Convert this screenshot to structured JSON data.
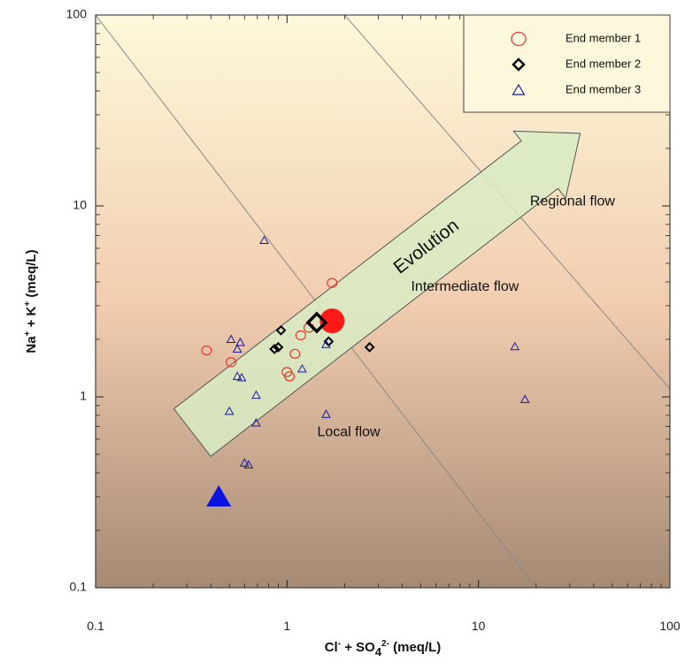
{
  "chart_data": {
    "type": "scatter",
    "x_scale": "log",
    "y_scale": "log",
    "xlim": [
      0.1,
      100
    ],
    "ylim": [
      0.1,
      100
    ],
    "x_ticks": [
      "0.1",
      "1",
      "10",
      "100"
    ],
    "y_ticks": [
      "0.1",
      "1",
      "10",
      "100"
    ],
    "xlabel": {
      "parts": [
        "Cl",
        "-",
        " + SO",
        "4",
        "2-",
        " (meq/L)"
      ]
    },
    "ylabel": {
      "parts": [
        "Na",
        "+",
        " + K",
        "+",
        " (meq/L)"
      ]
    },
    "grid": false,
    "legend_position": "top-right",
    "colors": {
      "end_member_1": "#e8392a",
      "end_member_2": "#000000",
      "end_member_3": "#1a1aa0",
      "end_member_1_large": "#ff1a1a",
      "end_member_3_large": "#0a14e0",
      "arrow_fill": "#d8ecc4",
      "background_top": "#fdf9da",
      "background_bottom": "#a68a74"
    },
    "series": [
      {
        "name": "End member 1",
        "marker": "circle-open",
        "points": [
          [
            0.38,
            1.75
          ],
          [
            0.51,
            1.52
          ],
          [
            1.0,
            1.35
          ],
          [
            1.03,
            1.28
          ],
          [
            1.1,
            1.68
          ],
          [
            1.18,
            2.1
          ],
          [
            1.3,
            2.3
          ],
          [
            1.65,
            2.65
          ],
          [
            1.72,
            3.95
          ]
        ]
      },
      {
        "name": "End member 2",
        "marker": "diamond-open",
        "points": [
          [
            0.86,
            1.78
          ],
          [
            0.9,
            1.82
          ],
          [
            0.93,
            2.23
          ],
          [
            1.65,
            1.95
          ],
          [
            2.7,
            1.82
          ]
        ]
      },
      {
        "name": "End member 3",
        "marker": "triangle-open",
        "points": [
          [
            0.51,
            2.0
          ],
          [
            0.55,
            1.78
          ],
          [
            0.57,
            1.93
          ],
          [
            0.55,
            1.28
          ],
          [
            0.58,
            1.26
          ],
          [
            0.5,
            0.84
          ],
          [
            0.69,
            1.02
          ],
          [
            0.69,
            0.73
          ],
          [
            0.6,
            0.45
          ],
          [
            0.63,
            0.44
          ],
          [
            0.76,
            6.6
          ],
          [
            1.2,
            1.4
          ],
          [
            1.6,
            1.88
          ],
          [
            1.6,
            0.81
          ],
          [
            15.5,
            1.83
          ],
          [
            17.5,
            0.97
          ]
        ]
      }
    ],
    "highlighted_points": [
      {
        "series": "End member 1",
        "marker": "circle-filled",
        "point": [
          1.72,
          2.5
        ]
      },
      {
        "series": "End member 2",
        "marker": "diamond-open-bold",
        "point": [
          1.43,
          2.45
        ]
      },
      {
        "series": "End member 3",
        "marker": "triangle-filled",
        "point": [
          0.44,
          0.3
        ]
      }
    ],
    "reference_lines": [
      {
        "from": [
          0.1,
          100
        ],
        "to": [
          20,
          0.1
        ]
      },
      {
        "from": [
          2,
          100
        ],
        "to": [
          100,
          1.1
        ]
      }
    ],
    "arrow": {
      "label": "Evolution",
      "tail": [
        0.32,
        0.65
      ],
      "head": [
        34,
        24
      ]
    },
    "region_labels": [
      {
        "text": "Regional flow",
        "at": [
          31,
          10.5
        ]
      },
      {
        "text": "Intermediate flow",
        "at": [
          8.5,
          3.75
        ]
      },
      {
        "text": "Local flow",
        "at": [
          2.1,
          0.65
        ]
      }
    ]
  }
}
